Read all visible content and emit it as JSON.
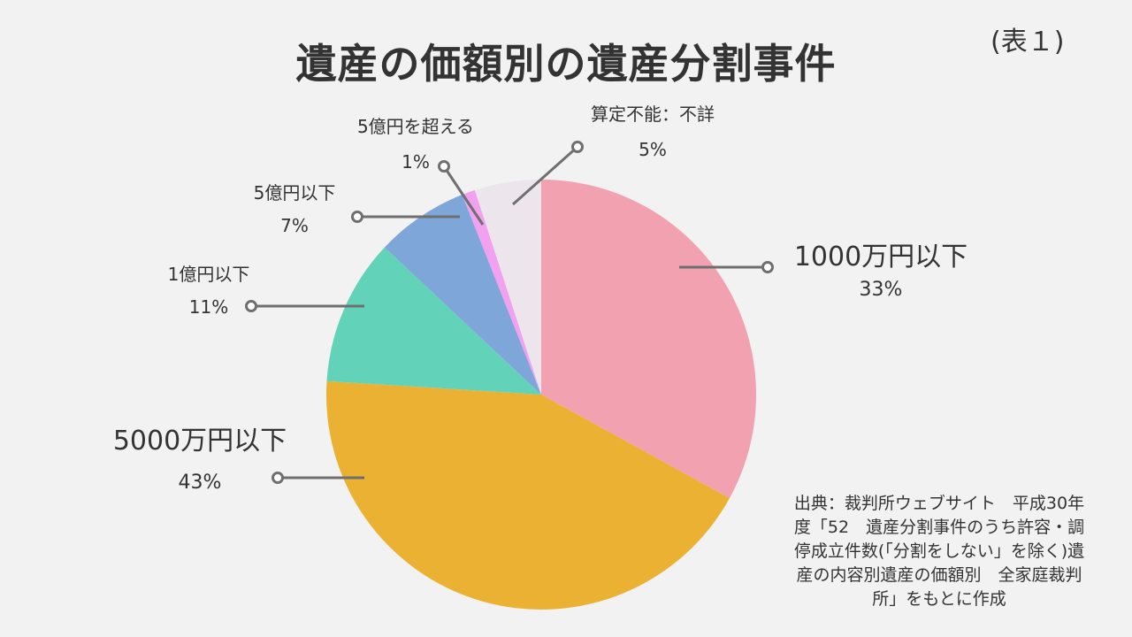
{
  "title": "遺産の価額別の遺産分割事件",
  "table_ref": "(表１)",
  "source_lines": [
    "出典：裁判所ウェブサイト　平成30年",
    "度「52　遺産分割事件のうち許容・調",
    "停成立件数(「分割をしない」を除く)遺",
    "産の内容別遺産の価額別　全家庭裁判",
    "所」をもとに作成"
  ],
  "chart_data": {
    "type": "pie",
    "title": "遺産の価額別の遺産分割事件",
    "unit": "%",
    "start": "12 o'clock, clockwise",
    "slices": [
      {
        "label": "1000万円以下",
        "value": 33,
        "display": "33%",
        "color": "#f2a1b1"
      },
      {
        "label": "5000万円以下",
        "value": 43,
        "display": "43%",
        "color": "#ebb133"
      },
      {
        "label": "1億円以下",
        "value": 11,
        "display": "11%",
        "color": "#62d3b8"
      },
      {
        "label": "5億円以下",
        "value": 7,
        "display": "7%",
        "color": "#7ea6d9"
      },
      {
        "label": "5億円を超える",
        "value": 1,
        "display": "1%",
        "color": "#f2a0f0"
      },
      {
        "label": "算定不能：不詳",
        "value": 5,
        "display": "5%",
        "color": "#ece6ec"
      }
    ]
  }
}
